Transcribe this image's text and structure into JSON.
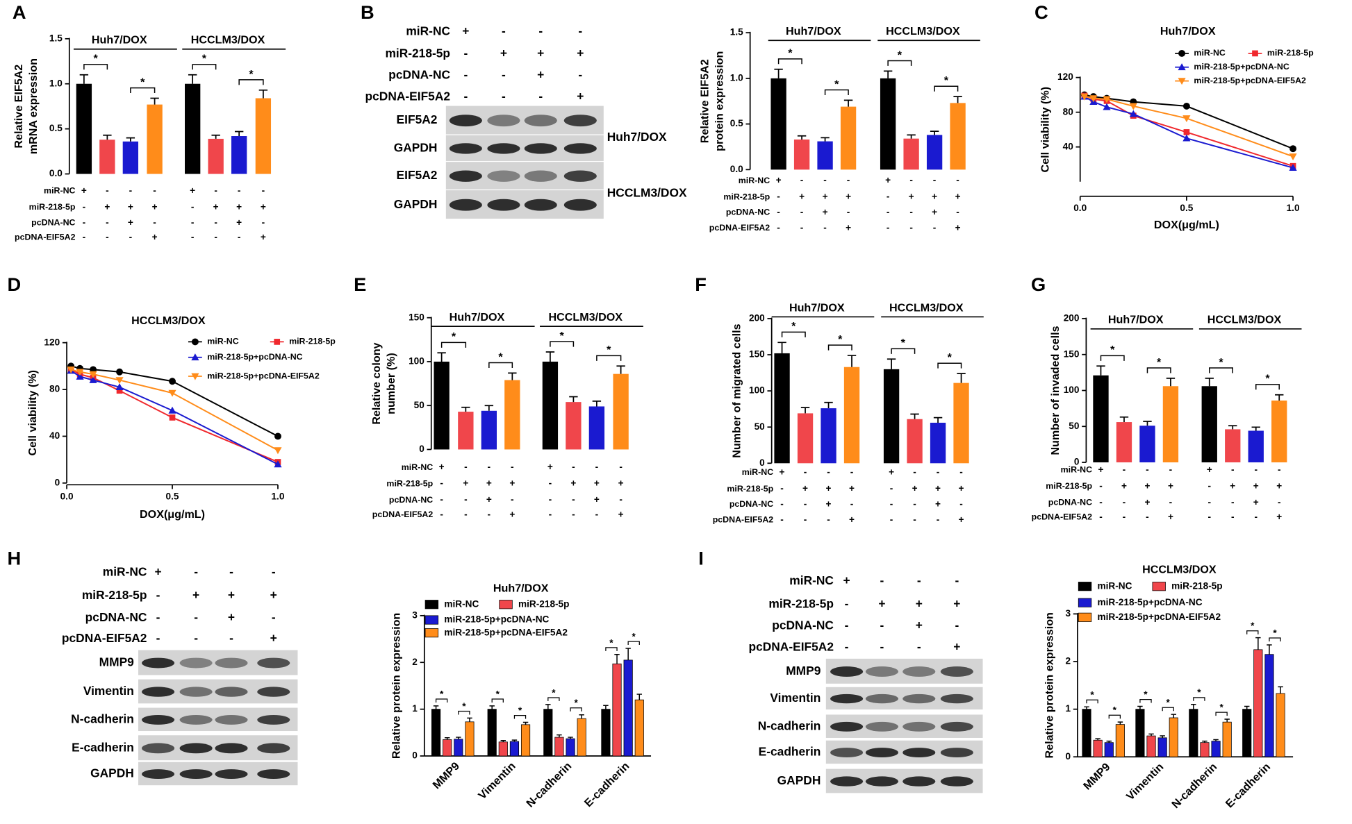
{
  "chart_data": [
    {
      "type": "bar",
      "panel": "A",
      "ylabel": [
        "Relative EIF5A2",
        "mRNA expression"
      ],
      "ylim": [
        0,
        1.5
      ],
      "yticks": [
        {
          "value": 0,
          "label": "0.0"
        },
        0.5,
        {
          "value": 1,
          "label": "1.0"
        },
        1.5
      ],
      "colors": [
        "#000000",
        "#f0464b",
        "#1a1ad0",
        "#ff8c1a"
      ],
      "significance": "*",
      "groups": [
        {
          "name": "Huh7/DOX",
          "values": [
            1.0,
            0.38,
            0.36,
            0.77
          ],
          "errors": [
            0.1,
            0.05,
            0.04,
            0.07
          ]
        },
        {
          "name": "HCCLM3/DOX",
          "values": [
            1.0,
            0.39,
            0.42,
            0.84
          ],
          "errors": [
            0.1,
            0.04,
            0.05,
            0.09
          ]
        }
      ],
      "treatments": [
        {
          "name": "miR-NC",
          "signs": [
            "+",
            "-",
            "-",
            "-",
            "+",
            "-",
            "-",
            "-"
          ]
        },
        {
          "name": "miR-218-5p",
          "signs": [
            "-",
            "+",
            "+",
            "+",
            "-",
            "+",
            "+",
            "+"
          ]
        },
        {
          "name": "pcDNA-NC",
          "signs": [
            "-",
            "-",
            "+",
            "-",
            "-",
            "-",
            "+",
            "-"
          ]
        },
        {
          "name": "pcDNA-EIF5A2",
          "signs": [
            "-",
            "-",
            "-",
            "+",
            "-",
            "-",
            "-",
            "+"
          ]
        }
      ]
    },
    {
      "type": "bar",
      "ylabel": [
        "Relative EIF5A2",
        "protein expression"
      ],
      "ylim": [
        0,
        1.5
      ],
      "yticks": [
        {
          "value": 0,
          "label": "0.0"
        },
        0.5,
        {
          "value": 1,
          "label": "1.0"
        },
        1.5
      ],
      "colors": [
        "#000000",
        "#f0464b",
        "#1a1ad0",
        "#ff8c1a"
      ],
      "significance": "*",
      "groups": [
        {
          "name": "Huh7/DOX",
          "values": [
            1.0,
            0.33,
            0.31,
            0.69
          ],
          "errors": [
            0.1,
            0.04,
            0.04,
            0.07
          ]
        },
        {
          "name": "HCCLM3/DOX",
          "values": [
            1.0,
            0.34,
            0.38,
            0.73
          ],
          "errors": [
            0.08,
            0.04,
            0.04,
            0.07
          ]
        }
      ],
      "treatments": [
        {
          "name": "miR-NC",
          "signs": [
            "+",
            "-",
            "-",
            "-",
            "+",
            "-",
            "-",
            "-"
          ]
        },
        {
          "name": "miR-218-5p",
          "signs": [
            "-",
            "+",
            "+",
            "+",
            "-",
            "+",
            "+",
            "+"
          ]
        },
        {
          "name": "pcDNA-NC",
          "signs": [
            "-",
            "-",
            "+",
            "-",
            "-",
            "-",
            "+",
            "-"
          ]
        },
        {
          "name": "pcDNA-EIF5A2",
          "signs": [
            "-",
            "-",
            "-",
            "+",
            "-",
            "-",
            "-",
            "+"
          ]
        }
      ]
    },
    {
      "type": "line",
      "panel": "C",
      "title": "Huh7/DOX",
      "xlabel": "DOX(μg/mL)",
      "ylabel": "Cell viability (%)",
      "x": [
        0.02,
        0.0625,
        0.125,
        0.25,
        0.5,
        1
      ],
      "xlim": [
        0,
        1
      ],
      "xticks": [
        {
          "value": 0,
          "label": "0.0"
        },
        0.5,
        {
          "value": 1,
          "label": "1.0"
        }
      ],
      "ylim": [
        0,
        120
      ],
      "yticks": [
        40,
        80,
        120
      ],
      "series": [
        {
          "name": "miR-NC",
          "color": "#000000",
          "marker": "circle",
          "values": [
            100,
            98,
            96,
            92,
            87,
            38
          ]
        },
        {
          "name": "miR-218-5p",
          "color": "#f0282d",
          "marker": "square",
          "values": [
            99,
            95,
            93,
            76,
            57,
            18
          ]
        },
        {
          "name": "miR-218-5p+pcDNA-NC",
          "color": "#1a1ad0",
          "marker": "triangle",
          "values": [
            98,
            92,
            86,
            78,
            50,
            16
          ]
        },
        {
          "name": "miR-218-5p+pcDNA-EIF5A2",
          "color": "#ff8c1a",
          "marker": "down-triangle",
          "values": [
            98,
            96,
            95,
            87,
            73,
            29
          ]
        }
      ]
    },
    {
      "type": "line",
      "panel": "D",
      "title": "HCCLM3/DOX",
      "xlabel": "DOX(μg/mL)",
      "ylabel": "Cell viability (%)",
      "x": [
        0.02,
        0.0625,
        0.125,
        0.25,
        0.5,
        1
      ],
      "xlim": [
        0,
        1
      ],
      "xticks": [
        {
          "value": 0,
          "label": "0.0"
        },
        0.5,
        {
          "value": 1,
          "label": "1.0"
        }
      ],
      "ylim": [
        0,
        120
      ],
      "yticks": [
        0,
        40,
        80,
        120
      ],
      "series": [
        {
          "name": "miR-NC",
          "color": "#000000",
          "marker": "circle",
          "values": [
            100,
            98,
            97,
            95,
            87,
            40
          ]
        },
        {
          "name": "miR-218-5p",
          "color": "#f0282d",
          "marker": "square",
          "values": [
            97,
            93,
            90,
            79,
            56,
            18
          ]
        },
        {
          "name": "miR-218-5p+pcDNA-NC",
          "color": "#1a1ad0",
          "marker": "triangle",
          "values": [
            96,
            91,
            88,
            82,
            62,
            16
          ]
        },
        {
          "name": "miR-218-5p+pcDNA-EIF5A2",
          "color": "#ff8c1a",
          "marker": "down-triangle",
          "values": [
            97,
            95,
            93,
            88,
            77,
            28
          ]
        }
      ]
    },
    {
      "type": "bar",
      "panel": "E",
      "ylabel": [
        "Relative colony",
        "number (%)"
      ],
      "ylim": [
        0,
        150
      ],
      "yticks": [
        0,
        50,
        100,
        150
      ],
      "colors": [
        "#000000",
        "#f0464b",
        "#1a1ad0",
        "#ff8c1a"
      ],
      "significance": "*",
      "groups": [
        {
          "name": "Huh7/DOX",
          "values": [
            100,
            43,
            44,
            79
          ],
          "errors": [
            10,
            5,
            6,
            8
          ]
        },
        {
          "name": "HCCLM3/DOX",
          "values": [
            100,
            54,
            49,
            86
          ],
          "errors": [
            11,
            6,
            6,
            9
          ]
        }
      ],
      "treatments": [
        {
          "name": "miR-NC",
          "signs": [
            "+",
            "-",
            "-",
            "-",
            "+",
            "-",
            "-",
            "-"
          ]
        },
        {
          "name": "miR-218-5p",
          "signs": [
            "-",
            "+",
            "+",
            "+",
            "-",
            "+",
            "+",
            "+"
          ]
        },
        {
          "name": "pcDNA-NC",
          "signs": [
            "-",
            "-",
            "+",
            "-",
            "-",
            "-",
            "+",
            "-"
          ]
        },
        {
          "name": "pcDNA-EIF5A2",
          "signs": [
            "-",
            "-",
            "-",
            "+",
            "-",
            "-",
            "-",
            "+"
          ]
        }
      ]
    },
    {
      "type": "bar",
      "panel": "F",
      "ylabel": [
        "Number of migrated cells"
      ],
      "ylim": [
        0,
        200
      ],
      "yticks": [
        0,
        50,
        100,
        150,
        200
      ],
      "colors": [
        "#000000",
        "#f0464b",
        "#1a1ad0",
        "#ff8c1a"
      ],
      "significance": "*",
      "groups": [
        {
          "name": "Huh7/DOX",
          "values": [
            152,
            69,
            76,
            133
          ],
          "errors": [
            15,
            8,
            8,
            16
          ]
        },
        {
          "name": "HCCLM3/DOX",
          "values": [
            130,
            61,
            56,
            111
          ],
          "errors": [
            14,
            7,
            7,
            13
          ]
        }
      ],
      "treatments": [
        {
          "name": "miR-NC",
          "signs": [
            "+",
            "-",
            "-",
            "-",
            "+",
            "-",
            "-",
            "-"
          ]
        },
        {
          "name": "miR-218-5p",
          "signs": [
            "-",
            "+",
            "+",
            "+",
            "-",
            "+",
            "+",
            "+"
          ]
        },
        {
          "name": "pcDNA-NC",
          "signs": [
            "-",
            "-",
            "+",
            "-",
            "-",
            "-",
            "+",
            "-"
          ]
        },
        {
          "name": "pcDNA-EIF5A2",
          "signs": [
            "-",
            "-",
            "-",
            "+",
            "-",
            "-",
            "-",
            "+"
          ]
        }
      ]
    },
    {
      "type": "bar",
      "panel": "G",
      "ylabel": [
        "Number of invaded cells"
      ],
      "ylim": [
        0,
        200
      ],
      "yticks": [
        0,
        50,
        100,
        150,
        200
      ],
      "colors": [
        "#000000",
        "#f0464b",
        "#1a1ad0",
        "#ff8c1a"
      ],
      "significance": "*",
      "groups": [
        {
          "name": "Huh7/DOX",
          "values": [
            121,
            56,
            51,
            106
          ],
          "errors": [
            13,
            7,
            6,
            11
          ]
        },
        {
          "name": "HCCLM3/DOX",
          "values": [
            106,
            46,
            44,
            86
          ],
          "errors": [
            11,
            5,
            5,
            8
          ]
        }
      ],
      "treatments": [
        {
          "name": "miR-NC",
          "signs": [
            "+",
            "-",
            "-",
            "-",
            "+",
            "-",
            "-",
            "-"
          ]
        },
        {
          "name": "miR-218-5p",
          "signs": [
            "-",
            "+",
            "+",
            "+",
            "-",
            "+",
            "+",
            "+"
          ]
        },
        {
          "name": "pcDNA-NC",
          "signs": [
            "-",
            "-",
            "+",
            "-",
            "-",
            "-",
            "+",
            "-"
          ]
        },
        {
          "name": "pcDNA-EIF5A2",
          "signs": [
            "-",
            "-",
            "-",
            "+",
            "-",
            "-",
            "-",
            "+"
          ]
        }
      ]
    },
    {
      "type": "grouped_bar",
      "title": "Huh7/DOX",
      "ylabel": "Relative protein expression",
      "categories": [
        "MMP9",
        "Vimentin",
        "N-cadherin",
        "E-cadherin"
      ],
      "ylim": [
        0,
        3
      ],
      "yticks": [
        0,
        1,
        2,
        3
      ],
      "significance": "*",
      "series": [
        {
          "name": "miR-NC",
          "color": "#000000",
          "values": [
            1,
            1,
            1,
            1
          ],
          "errors": [
            0.07,
            0.07,
            0.1,
            0.08
          ]
        },
        {
          "name": "miR-218-5p",
          "color": "#f0464b",
          "values": [
            0.35,
            0.3,
            0.4,
            1.97
          ],
          "errors": [
            0.04,
            0.03,
            0.05,
            0.2
          ]
        },
        {
          "name": "miR-218-5p+pcDNA-NC",
          "color": "#1a1ad0",
          "values": [
            0.36,
            0.31,
            0.37,
            2.05
          ],
          "errors": [
            0.04,
            0.03,
            0.03,
            0.25
          ]
        },
        {
          "name": "miR-218-5p+pcDNA-EIF5A2",
          "color": "#ff8c1a",
          "values": [
            0.73,
            0.67,
            0.8,
            1.2
          ],
          "errors": [
            0.08,
            0.05,
            0.08,
            0.12
          ]
        }
      ]
    },
    {
      "type": "grouped_bar",
      "title": "HCCLM3/DOX",
      "ylabel": "Relative protein expression",
      "categories": [
        "MMP9",
        "Vimentin",
        "N-cadherin",
        "E-cadherin"
      ],
      "ylim": [
        0,
        3
      ],
      "yticks": [
        0,
        1,
        2,
        3
      ],
      "significance": "*",
      "series": [
        {
          "name": "miR-NC",
          "color": "#000000",
          "values": [
            1,
            1,
            1,
            1
          ],
          "errors": [
            0.05,
            0.06,
            0.1,
            0.06
          ]
        },
        {
          "name": "miR-218-5p",
          "color": "#f0464b",
          "values": [
            0.35,
            0.44,
            0.3,
            2.25
          ],
          "errors": [
            0.03,
            0.04,
            0.03,
            0.25
          ]
        },
        {
          "name": "miR-218-5p+pcDNA-NC",
          "color": "#1a1ad0",
          "values": [
            0.3,
            0.4,
            0.33,
            2.15
          ],
          "errors": [
            0.03,
            0.04,
            0.03,
            0.2
          ]
        },
        {
          "name": "miR-218-5p+pcDNA-EIF5A2",
          "color": "#ff8c1a",
          "values": [
            0.68,
            0.82,
            0.73,
            1.33
          ],
          "errors": [
            0.05,
            0.07,
            0.06,
            0.14
          ]
        }
      ]
    }
  ],
  "blots": [
    {
      "panel": "B",
      "rows": [
        "EIF5A2",
        "GAPDH",
        "EIF5A2",
        "GAPDH"
      ],
      "cell_lines": [
        "Huh7/DOX",
        "HCCLM3/DOX"
      ],
      "conditions": [
        {
          "name": "miR-NC",
          "signs": [
            "+",
            "-",
            "-",
            "-"
          ]
        },
        {
          "name": "miR-218-5p",
          "signs": [
            "-",
            "+",
            "+",
            "+"
          ]
        },
        {
          "name": "pcDNA-NC",
          "signs": [
            "-",
            "-",
            "+",
            "-"
          ]
        },
        {
          "name": "pcDNA-EIF5A2",
          "signs": [
            "-",
            "-",
            "-",
            "+"
          ]
        }
      ]
    },
    {
      "panel": "H",
      "rows": [
        "MMP9",
        "Vimentin",
        "N-cadherin",
        "E-cadherin",
        "GAPDH"
      ],
      "conditions": [
        {
          "name": "miR-NC",
          "signs": [
            "+",
            "-",
            "-",
            "-"
          ]
        },
        {
          "name": "miR-218-5p",
          "signs": [
            "-",
            "+",
            "+",
            "+"
          ]
        },
        {
          "name": "pcDNA-NC",
          "signs": [
            "-",
            "-",
            "+",
            "-"
          ]
        },
        {
          "name": "pcDNA-EIF5A2",
          "signs": [
            "-",
            "-",
            "-",
            "+"
          ]
        }
      ]
    },
    {
      "panel": "I",
      "rows": [
        "MMP9",
        "Vimentin",
        "N-cadherin",
        "E-cadherin",
        "GAPDH"
      ],
      "conditions": [
        {
          "name": "miR-NC",
          "signs": [
            "+",
            "-",
            "-",
            "-"
          ]
        },
        {
          "name": "miR-218-5p",
          "signs": [
            "-",
            "+",
            "+",
            "+"
          ]
        },
        {
          "name": "pcDNA-NC",
          "signs": [
            "-",
            "-",
            "+",
            "-"
          ]
        },
        {
          "name": "pcDNA-EIF5A2",
          "signs": [
            "-",
            "-",
            "-",
            "+"
          ]
        }
      ]
    }
  ]
}
